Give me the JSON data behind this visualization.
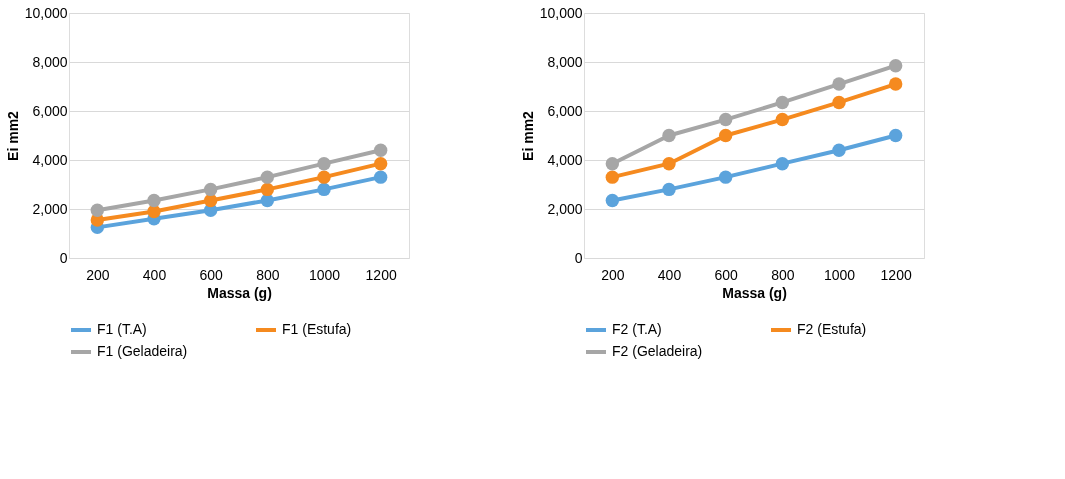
{
  "chart_data": [
    {
      "type": "line",
      "xlabel": "Massa (g)",
      "ylabel": "Ei mm2",
      "categories": [
        "200",
        "400",
        "600",
        "800",
        "1000",
        "1200"
      ],
      "ylim": [
        0,
        10000
      ],
      "yticks": [
        {
          "value": 0,
          "label": "0"
        },
        {
          "value": 2000,
          "label": "2,000"
        },
        {
          "value": 4000,
          "label": "4,000"
        },
        {
          "value": 6000,
          "label": "6,000"
        },
        {
          "value": 8000,
          "label": "8,000"
        },
        {
          "value": 10000,
          "label": "10,000"
        }
      ],
      "grid": "y",
      "legend": "bottom",
      "marker": "circle",
      "line_style": "solid",
      "series": [
        {
          "name": "F1 (T.A)",
          "color": "#5ba3dc",
          "values": [
            1250,
            1600,
            1950,
            2350,
            2800,
            3300
          ]
        },
        {
          "name": "F1 (Estufa)",
          "color": "#f58a1f",
          "values": [
            1550,
            1900,
            2350,
            2800,
            3300,
            3850
          ]
        },
        {
          "name": "F1 (Geladeira)",
          "color": "#a6a6a6",
          "values": [
            1950,
            2350,
            2800,
            3300,
            3850,
            4400
          ]
        }
      ]
    },
    {
      "type": "line",
      "xlabel": "Massa (g)",
      "ylabel": "Ei mm2",
      "categories": [
        "200",
        "400",
        "600",
        "800",
        "1000",
        "1200"
      ],
      "ylim": [
        0,
        10000
      ],
      "yticks": [
        {
          "value": 0,
          "label": "0"
        },
        {
          "value": 2000,
          "label": "2,000"
        },
        {
          "value": 4000,
          "label": "4,000"
        },
        {
          "value": 6000,
          "label": "6,000"
        },
        {
          "value": 8000,
          "label": "8,000"
        },
        {
          "value": 10000,
          "label": "10,000"
        }
      ],
      "grid": "y",
      "legend": "bottom",
      "marker": "circle",
      "line_style": "solid",
      "series": [
        {
          "name": "F2 (T.A)",
          "color": "#5ba3dc",
          "values": [
            2350,
            2800,
            3300,
            3850,
            4400,
            5000
          ]
        },
        {
          "name": "F2 (Estufa)",
          "color": "#f58a1f",
          "values": [
            3300,
            3850,
            5000,
            5650,
            6350,
            7100
          ]
        },
        {
          "name": "F2 (Geladeira)",
          "color": "#a6a6a6",
          "values": [
            3850,
            5000,
            5650,
            6350,
            7100,
            7850
          ]
        }
      ]
    }
  ]
}
